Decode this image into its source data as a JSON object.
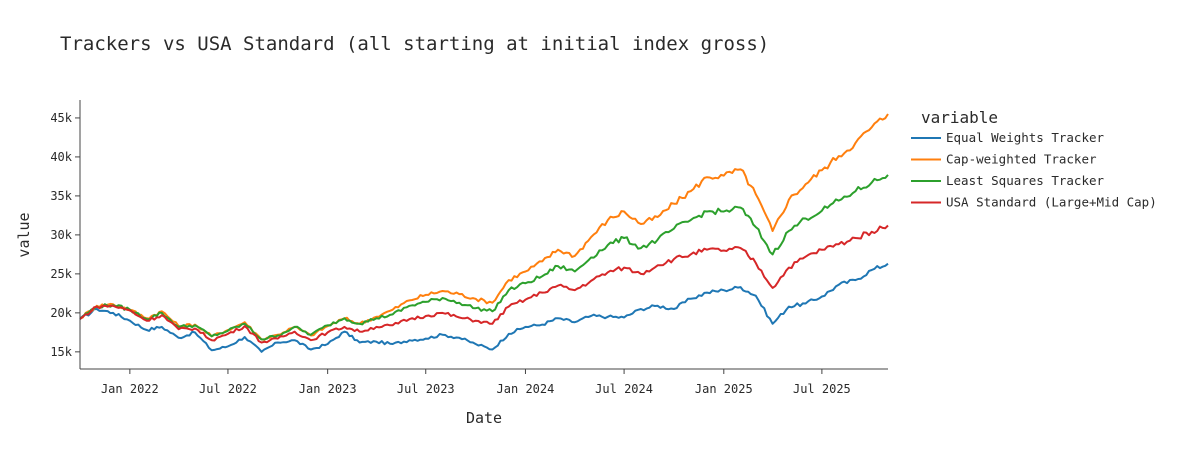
{
  "chart_data": {
    "type": "line",
    "title": "Trackers vs USA Standard (all starting at initial index gross)",
    "xlabel": "Date",
    "ylabel": "value",
    "legend_title": "variable",
    "legend_position": "right",
    "grid": false,
    "xlim": [
      "2021-10-01",
      "2025-10-31"
    ],
    "ylim": [
      12800,
      47300
    ],
    "x_ticks": [
      "2022-01-01",
      "2022-07-01",
      "2023-01-01",
      "2023-07-01",
      "2024-01-01",
      "2024-07-01",
      "2025-01-01",
      "2025-07-01"
    ],
    "x_tick_labels": [
      "Jan 2022",
      "Jul 2022",
      "Jan 2023",
      "Jul 2023",
      "Jan 2024",
      "Jul 2024",
      "Jan 2025",
      "Jul 2025"
    ],
    "y_ticks": [
      15000,
      20000,
      25000,
      30000,
      35000,
      40000,
      45000
    ],
    "y_tick_labels": [
      "15k",
      "20k",
      "25k",
      "30k",
      "35k",
      "40k",
      "45k"
    ],
    "x": [
      "2021-10-01",
      "2021-11-01",
      "2021-12-01",
      "2022-01-01",
      "2022-02-01",
      "2022-03-01",
      "2022-04-01",
      "2022-05-01",
      "2022-06-01",
      "2022-07-01",
      "2022-08-01",
      "2022-09-01",
      "2022-10-01",
      "2022-11-01",
      "2022-12-01",
      "2023-01-01",
      "2023-02-01",
      "2023-03-01",
      "2023-04-01",
      "2023-05-01",
      "2023-06-01",
      "2023-07-01",
      "2023-08-01",
      "2023-09-01",
      "2023-10-01",
      "2023-11-01",
      "2023-12-01",
      "2024-01-01",
      "2024-02-01",
      "2024-03-01",
      "2024-04-01",
      "2024-05-01",
      "2024-06-01",
      "2024-07-01",
      "2024-08-01",
      "2024-09-01",
      "2024-10-01",
      "2024-11-01",
      "2024-12-01",
      "2025-01-01",
      "2025-02-01",
      "2025-03-01",
      "2025-04-01",
      "2025-05-01",
      "2025-06-01",
      "2025-07-01",
      "2025-08-01",
      "2025-09-01",
      "2025-10-01",
      "2025-10-31"
    ],
    "series": [
      {
        "name": "Equal Weights Tracker",
        "color": "#1f77b4",
        "values": [
          19200,
          20500,
          20000,
          19000,
          17800,
          18200,
          16800,
          17500,
          15200,
          15700,
          16900,
          15000,
          16200,
          16500,
          15300,
          16000,
          17600,
          16200,
          16300,
          16000,
          16500,
          16700,
          17200,
          16800,
          16000,
          15300,
          17300,
          18200,
          18500,
          19300,
          18800,
          19600,
          19500,
          19400,
          20500,
          20900,
          20500,
          21800,
          22600,
          22900,
          23300,
          22200,
          18600,
          20800,
          21200,
          22100,
          23600,
          24200,
          25500,
          26300
        ]
      },
      {
        "name": "Cap-weighted Tracker",
        "color": "#ff7f0e",
        "values": [
          19300,
          20900,
          21100,
          20400,
          19300,
          20200,
          18300,
          18500,
          17000,
          17800,
          18800,
          16600,
          17200,
          18200,
          17100,
          18300,
          19300,
          18600,
          19500,
          20400,
          21600,
          22300,
          22800,
          22400,
          21800,
          21300,
          24200,
          25300,
          26600,
          28100,
          27300,
          29700,
          31900,
          33000,
          31400,
          32300,
          34000,
          35600,
          37400,
          37600,
          38400,
          35200,
          30500,
          34500,
          36500,
          38300,
          40100,
          41800,
          43800,
          45500
        ]
      },
      {
        "name": "Least Squares Tracker",
        "color": "#2ca02c",
        "values": [
          19300,
          20800,
          21000,
          20400,
          19200,
          20000,
          18200,
          18400,
          17000,
          17700,
          18600,
          16600,
          17100,
          18200,
          17200,
          18400,
          19300,
          18600,
          19300,
          19800,
          20900,
          21400,
          21900,
          21300,
          20600,
          20200,
          22900,
          23800,
          24700,
          26000,
          25300,
          27100,
          28700,
          29600,
          28300,
          29400,
          30800,
          31900,
          33000,
          33000,
          33500,
          31000,
          27500,
          30500,
          32100,
          33100,
          34400,
          35600,
          36700,
          37700
        ]
      },
      {
        "name": "USA Standard (Large+Mid Cap)",
        "color": "#d62728",
        "values": [
          19200,
          20800,
          20900,
          20300,
          19000,
          19700,
          17900,
          18000,
          16500,
          17300,
          18300,
          16200,
          16700,
          17600,
          16500,
          17500,
          18200,
          17600,
          18200,
          18400,
          19200,
          19600,
          20000,
          19400,
          19000,
          18600,
          20800,
          21700,
          22600,
          23500,
          22900,
          24100,
          25200,
          25800,
          25000,
          26100,
          26900,
          27500,
          28100,
          28000,
          28300,
          26400,
          23200,
          25800,
          27200,
          28100,
          28800,
          29600,
          30400,
          31200
        ]
      }
    ]
  }
}
